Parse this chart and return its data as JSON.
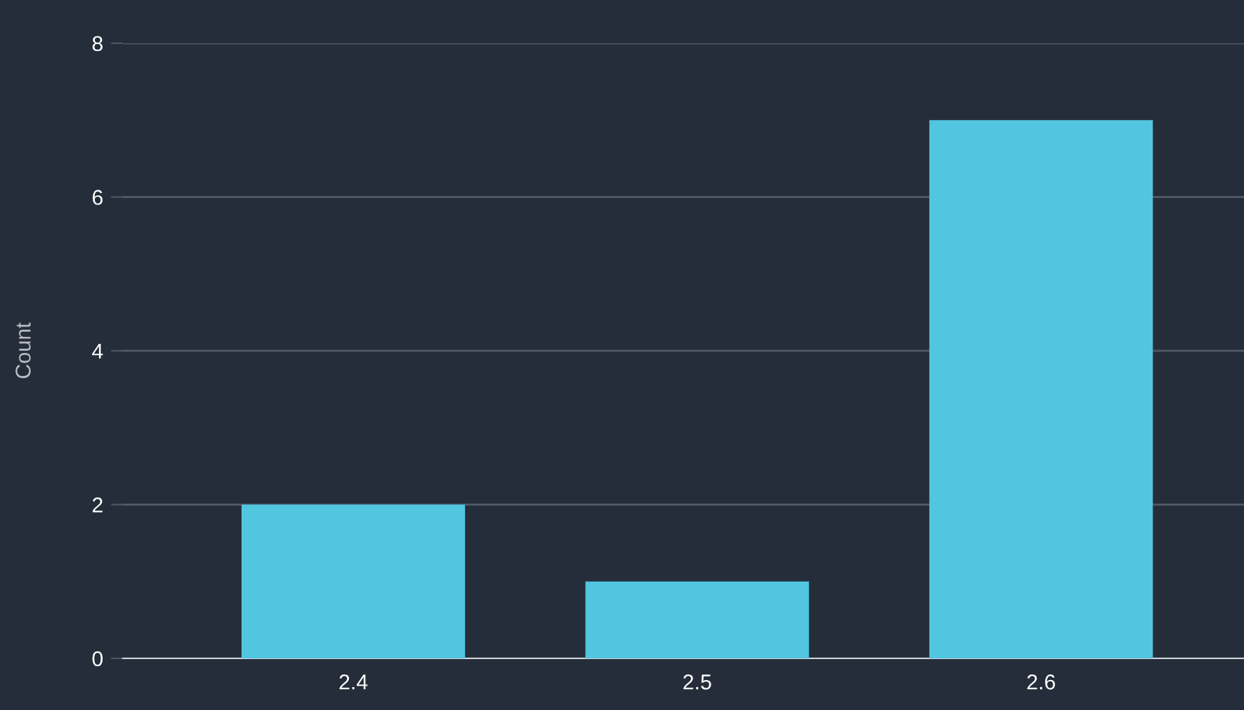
{
  "chart_data": {
    "type": "bar",
    "categories": [
      "2.4",
      "2.5",
      "2.6"
    ],
    "values": [
      2,
      1,
      7
    ],
    "color": "#52c6e0",
    "ylabel": "Count",
    "ylim": [
      0,
      8
    ],
    "yticks": [
      0,
      2,
      4,
      6,
      8
    ],
    "grid": "y",
    "legend": false
  }
}
